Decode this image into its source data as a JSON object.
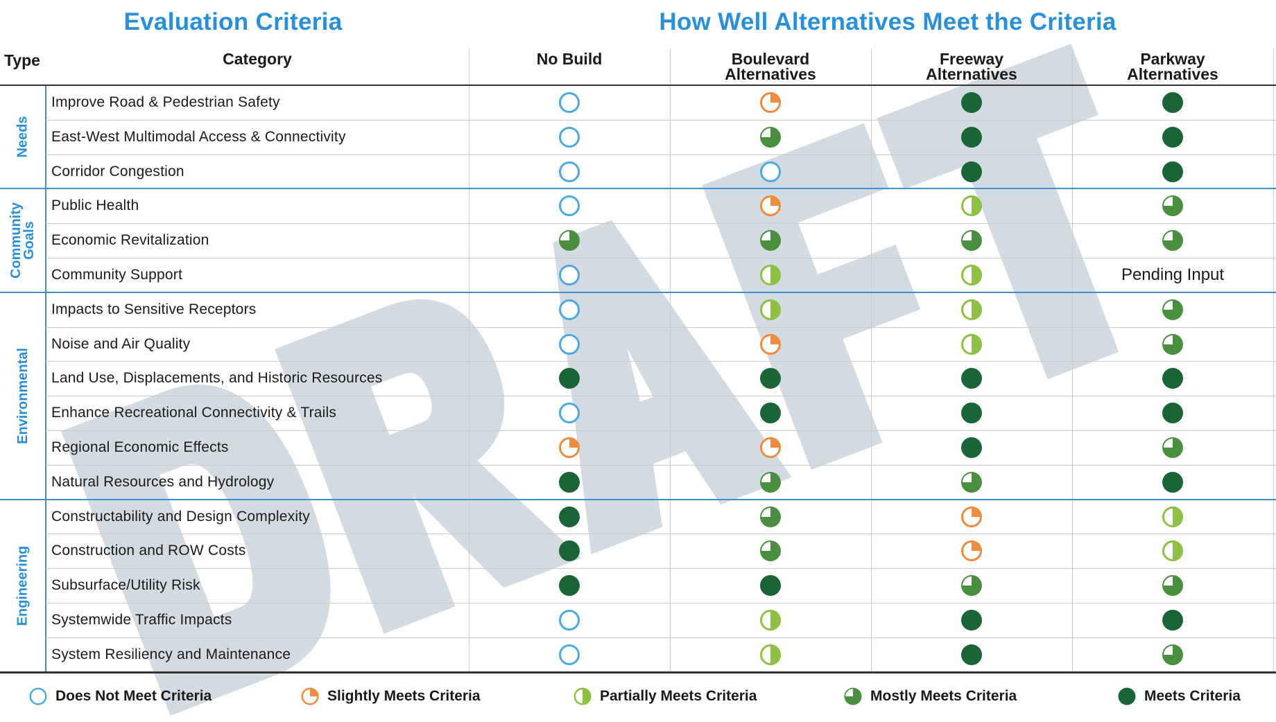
{
  "titles": {
    "left": "Evaluation Criteria",
    "right": "How Well Alternatives Meet the Criteria"
  },
  "headers": {
    "type": "Type",
    "category": "Category",
    "alternatives": [
      "No Build",
      "Boulevard\nAlternatives",
      "Freeway\nAlternatives",
      "Parkway\nAlternatives"
    ]
  },
  "watermark": "DRAFT",
  "colors": {
    "accent": "#2b8fd6",
    "does_not_meet": "#4ea8e0",
    "slightly": "#f08a3c",
    "partially": "#8dc043",
    "mostly": "#4a8f3f",
    "meets": "#1b6436",
    "watermark": "#d3dbe2"
  },
  "levels": [
    "Does Not Meet Criteria",
    "Slightly Meets Criteria",
    "Partially Meets Criteria",
    "Mostly Meets Criteria",
    "Meets Criteria"
  ],
  "groups": [
    {
      "type": "Needs",
      "rows": [
        {
          "category": "Improve Road & Pedestrian Safety",
          "ratings": [
            0,
            1,
            4,
            4
          ]
        },
        {
          "category": "East-West Multimodal Access & Connectivity",
          "ratings": [
            0,
            3,
            4,
            4
          ]
        },
        {
          "category": "Corridor Congestion",
          "ratings": [
            0,
            0,
            4,
            4
          ]
        }
      ]
    },
    {
      "type": "Community\nGoals",
      "rows": [
        {
          "category": "Public Health",
          "ratings": [
            0,
            1,
            2,
            3
          ]
        },
        {
          "category": "Economic Revitalization",
          "ratings": [
            3,
            3,
            3,
            3
          ]
        },
        {
          "category": "Community Support",
          "ratings": [
            0,
            2,
            2,
            "Pending Input"
          ]
        }
      ]
    },
    {
      "type": "Environmental",
      "rows": [
        {
          "category": "Impacts to Sensitive Receptors",
          "ratings": [
            0,
            2,
            2,
            3
          ]
        },
        {
          "category": "Noise and Air Quality",
          "ratings": [
            0,
            1,
            2,
            3
          ]
        },
        {
          "category": "Land Use, Displacements, and Historic Resources",
          "ratings": [
            4,
            4,
            4,
            4
          ]
        },
        {
          "category": "Enhance Recreational Connectivity & Trails",
          "ratings": [
            0,
            4,
            4,
            4
          ]
        },
        {
          "category": "Regional Economic Effects",
          "ratings": [
            1,
            1,
            4,
            3
          ]
        },
        {
          "category": "Natural Resources and Hydrology",
          "ratings": [
            4,
            3,
            3,
            4
          ]
        }
      ]
    },
    {
      "type": "Engineering",
      "rows": [
        {
          "category": "Constructability and Design Complexity",
          "ratings": [
            4,
            3,
            1,
            2
          ]
        },
        {
          "category": "Construction and ROW Costs",
          "ratings": [
            4,
            3,
            1,
            2
          ]
        },
        {
          "category": "Subsurface/Utility Risk",
          "ratings": [
            4,
            4,
            3,
            3
          ]
        },
        {
          "category": "Systemwide Traffic Impacts",
          "ratings": [
            0,
            2,
            4,
            4
          ]
        },
        {
          "category": "System Resiliency and Maintenance",
          "ratings": [
            0,
            2,
            4,
            3
          ]
        }
      ]
    }
  ]
}
